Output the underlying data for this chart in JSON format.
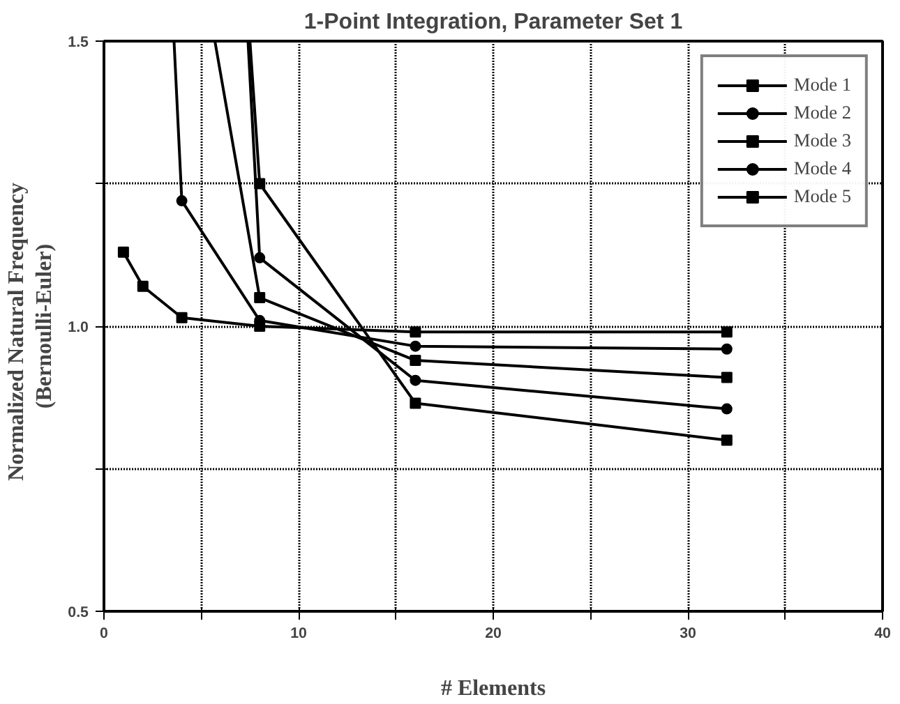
{
  "chart_data": {
    "type": "line",
    "title": "1-Point Integration, Parameter Set 1",
    "xlabel": "# Elements",
    "ylabel": "Normalized  Natural  Frequency\n(Bernoulli-Euler)",
    "xlim": [
      0,
      40
    ],
    "ylim": [
      0.5,
      1.5
    ],
    "xticks": [
      0,
      {
        "value": 5,
        "label": null
      },
      10,
      {
        "value": 15,
        "label": null
      },
      20,
      {
        "value": 25,
        "label": null
      },
      30,
      {
        "value": 35,
        "label": null
      },
      40
    ],
    "yticks": [
      0.5,
      {
        "value": 0.75,
        "label": null
      },
      {
        "value": 1,
        "label": "1.0"
      },
      {
        "value": 1.25,
        "label": null
      },
      1.5
    ],
    "grid": true,
    "legend": "top right",
    "line_style": "solid",
    "series": [
      {
        "name": "Mode 1",
        "color": "#000000",
        "marker": "square",
        "x": [
          1,
          2,
          4,
          8,
          16,
          32
        ],
        "values": [
          1.13,
          1.07,
          1.015,
          1.0,
          0.99,
          0.99
        ]
      },
      {
        "name": "Mode 2",
        "color": "#000000",
        "marker": "circle",
        "x": [
          3.6,
          4,
          8,
          16,
          32
        ],
        "values": [
          1.5,
          1.22,
          1.01,
          0.965,
          0.96
        ]
      },
      {
        "name": "Mode 3",
        "color": "#000000",
        "marker": "square",
        "x": [
          5.7,
          8,
          16,
          32
        ],
        "values": [
          1.5,
          1.05,
          0.94,
          0.91
        ]
      },
      {
        "name": "Mode 4",
        "color": "#000000",
        "marker": "circle",
        "x": [
          7.4,
          8,
          16,
          32
        ],
        "values": [
          1.5,
          1.12,
          0.905,
          0.855
        ]
      },
      {
        "name": "Mode 5",
        "color": "#000000",
        "marker": "square",
        "x": [
          7.5,
          8,
          16,
          32
        ],
        "values": [
          1.5,
          1.25,
          0.865,
          0.8
        ]
      }
    ]
  }
}
